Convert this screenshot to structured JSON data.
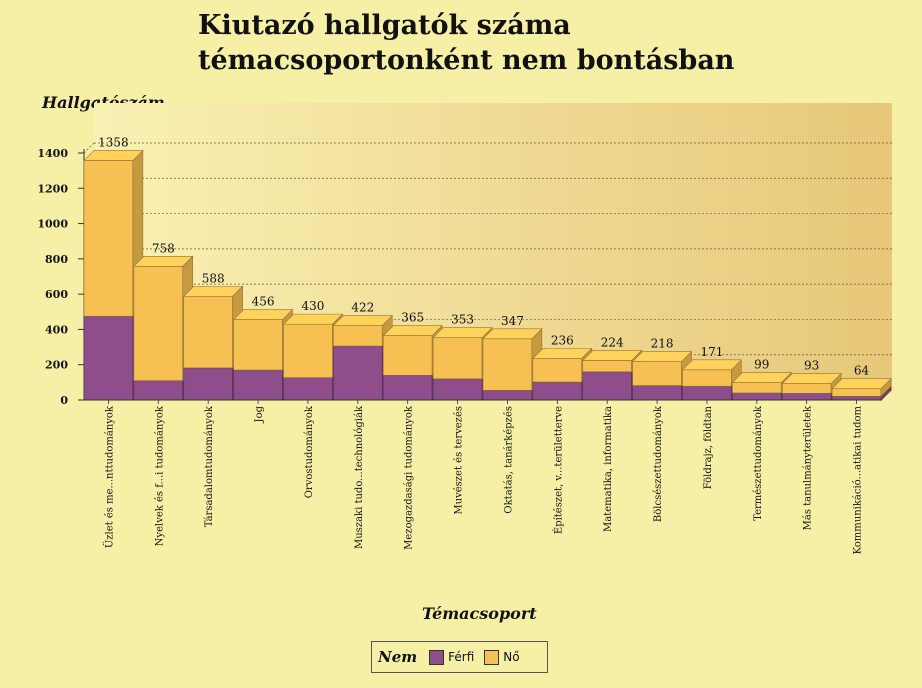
{
  "title_line1": "Kiutazó hallgatók száma",
  "title_line2": "témacsoportonként nem bontásban",
  "colors": {
    "ferfi": "#8e4e8c",
    "no": "#f6c053",
    "background": "#f6f0a6"
  },
  "chart_data": {
    "type": "bar",
    "stacked": true,
    "title": "Kiutazó hallgatók száma témacsoportonként nem bontásban",
    "ylabel": "Hallgatószám",
    "xlabel": "Témacsoport",
    "ylim": [
      0,
      1400
    ],
    "yticks": [
      0,
      200,
      400,
      600,
      800,
      1000,
      1200,
      1400
    ],
    "grid": true,
    "legend_title": "Nem",
    "categories": [
      "Üzlet és me...nttudományok",
      "Nyelvek és f...i tudományok",
      "Társadalomtudományok",
      "Jog",
      "Orvostudományok",
      "Muszaki tudo...technológiák",
      "Mezogazdasági tudományok",
      "Muvészet és tervezés",
      "Oktatás, tanárképzés",
      "Építészet, v...területterve",
      "Matematika, informatika",
      "Bölcsészettudományok",
      "Földrajz, földtan",
      "Természettudományok",
      "Más tanulmányterületek",
      "Kommunikáció...atikai tudom"
    ],
    "totals": [
      1358,
      758,
      588,
      456,
      430,
      422,
      365,
      353,
      347,
      236,
      224,
      218,
      171,
      99,
      93,
      64
    ],
    "series": [
      {
        "name": "Férfi",
        "values": [
          475,
          110,
          182,
          170,
          127,
          306,
          140,
          120,
          55,
          102,
          160,
          82,
          78,
          40,
          38,
          21
        ]
      },
      {
        "name": "Nő",
        "values": [
          883,
          648,
          406,
          286,
          303,
          116,
          225,
          233,
          292,
          134,
          64,
          136,
          93,
          59,
          55,
          43
        ]
      }
    ]
  }
}
